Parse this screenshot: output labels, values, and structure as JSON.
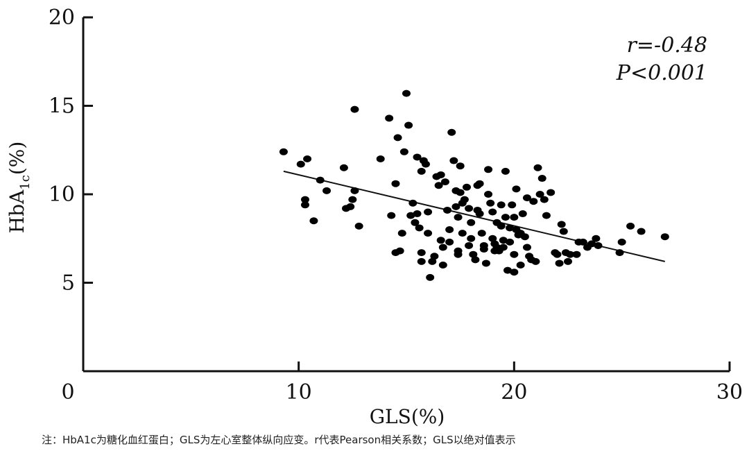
{
  "chart_data": {
    "type": "scatter",
    "xlabel": "GLS(%)",
    "ylabel_main": "HbA",
    "ylabel_sub": "1c",
    "ylabel_unit": "(%)",
    "x_ticks": [
      0,
      10,
      20,
      30
    ],
    "y_ticks": [
      5,
      10,
      15,
      20
    ],
    "xlim": [
      0,
      30
    ],
    "ylim": [
      0,
      20
    ],
    "stats": {
      "r": "r=-0.48",
      "p": "P<0.001"
    },
    "regression": {
      "x": [
        9.3,
        27.0
      ],
      "y": [
        11.3,
        6.2
      ]
    },
    "grid": false,
    "points": [
      [
        9.3,
        12.4
      ],
      [
        10.1,
        11.7
      ],
      [
        10.4,
        12.0
      ],
      [
        10.3,
        9.7
      ],
      [
        10.3,
        9.4
      ],
      [
        10.7,
        8.5
      ],
      [
        11.0,
        10.8
      ],
      [
        11.3,
        10.2
      ],
      [
        12.1,
        11.5
      ],
      [
        12.2,
        9.2
      ],
      [
        12.4,
        9.3
      ],
      [
        12.5,
        9.7
      ],
      [
        12.6,
        14.8
      ],
      [
        12.6,
        10.2
      ],
      [
        12.8,
        8.2
      ],
      [
        13.8,
        12.0
      ],
      [
        14.2,
        14.3
      ],
      [
        14.3,
        8.8
      ],
      [
        14.5,
        10.6
      ],
      [
        14.5,
        6.7
      ],
      [
        14.6,
        13.2
      ],
      [
        14.7,
        6.8
      ],
      [
        14.8,
        7.8
      ],
      [
        14.9,
        12.4
      ],
      [
        15.0,
        15.7
      ],
      [
        15.1,
        13.9
      ],
      [
        15.2,
        8.8
      ],
      [
        15.3,
        9.5
      ],
      [
        15.4,
        8.4
      ],
      [
        15.5,
        12.1
      ],
      [
        15.5,
        8.9
      ],
      [
        15.6,
        8.1
      ],
      [
        15.7,
        11.3
      ],
      [
        15.7,
        6.7
      ],
      [
        15.7,
        6.2
      ],
      [
        15.8,
        11.9
      ],
      [
        15.9,
        11.7
      ],
      [
        16.0,
        9.0
      ],
      [
        16.0,
        7.8
      ],
      [
        16.1,
        5.3
      ],
      [
        16.2,
        6.2
      ],
      [
        16.3,
        6.5
      ],
      [
        16.4,
        11.0
      ],
      [
        16.5,
        10.5
      ],
      [
        16.6,
        11.1
      ],
      [
        16.6,
        7.4
      ],
      [
        16.7,
        7.0
      ],
      [
        16.7,
        6.0
      ],
      [
        16.8,
        10.7
      ],
      [
        16.9,
        9.1
      ],
      [
        17.0,
        8.0
      ],
      [
        17.0,
        7.3
      ],
      [
        17.1,
        13.5
      ],
      [
        17.2,
        11.9
      ],
      [
        17.3,
        10.2
      ],
      [
        17.3,
        9.3
      ],
      [
        17.4,
        8.7
      ],
      [
        17.4,
        6.8
      ],
      [
        17.4,
        6.6
      ],
      [
        17.5,
        11.6
      ],
      [
        17.5,
        10.1
      ],
      [
        17.6,
        9.5
      ],
      [
        17.6,
        7.8
      ],
      [
        17.7,
        9.7
      ],
      [
        17.8,
        10.4
      ],
      [
        17.9,
        9.2
      ],
      [
        17.9,
        7.1
      ],
      [
        18.0,
        8.4
      ],
      [
        18.0,
        7.5
      ],
      [
        18.1,
        6.6
      ],
      [
        18.2,
        6.3
      ],
      [
        18.3,
        10.5
      ],
      [
        18.3,
        9.1
      ],
      [
        18.4,
        10.6
      ],
      [
        18.4,
        8.9
      ],
      [
        18.5,
        7.8
      ],
      [
        18.6,
        7.1
      ],
      [
        18.6,
        6.9
      ],
      [
        18.7,
        6.1
      ],
      [
        18.8,
        11.4
      ],
      [
        18.8,
        10.0
      ],
      [
        18.9,
        9.5
      ],
      [
        19.0,
        9.0
      ],
      [
        19.0,
        7.5
      ],
      [
        19.1,
        7.2
      ],
      [
        19.1,
        6.8
      ],
      [
        19.2,
        8.4
      ],
      [
        19.2,
        7.0
      ],
      [
        19.3,
        6.8
      ],
      [
        19.4,
        9.4
      ],
      [
        19.4,
        8.2
      ],
      [
        19.5,
        7.4
      ],
      [
        19.5,
        7.0
      ],
      [
        19.6,
        11.3
      ],
      [
        19.6,
        8.7
      ],
      [
        19.7,
        5.7
      ],
      [
        19.8,
        8.1
      ],
      [
        19.8,
        7.3
      ],
      [
        19.9,
        9.4
      ],
      [
        20.0,
        8.7
      ],
      [
        20.0,
        6.6
      ],
      [
        20.0,
        5.6
      ],
      [
        20.1,
        10.3
      ],
      [
        20.1,
        8.0
      ],
      [
        20.2,
        7.7
      ],
      [
        20.3,
        7.8
      ],
      [
        20.3,
        6.0
      ],
      [
        20.4,
        8.9
      ],
      [
        20.5,
        7.6
      ],
      [
        20.6,
        9.8
      ],
      [
        20.6,
        7.0
      ],
      [
        20.7,
        6.5
      ],
      [
        20.8,
        6.3
      ],
      [
        20.9,
        9.6
      ],
      [
        21.0,
        6.2
      ],
      [
        21.1,
        11.5
      ],
      [
        21.2,
        10.0
      ],
      [
        21.3,
        10.9
      ],
      [
        21.4,
        9.7
      ],
      [
        21.5,
        8.8
      ],
      [
        21.7,
        10.1
      ],
      [
        21.9,
        6.7
      ],
      [
        22.0,
        6.6
      ],
      [
        22.1,
        6.1
      ],
      [
        22.2,
        8.3
      ],
      [
        22.3,
        7.9
      ],
      [
        22.4,
        6.7
      ],
      [
        22.5,
        6.2
      ],
      [
        22.6,
        6.6
      ],
      [
        22.9,
        6.6
      ],
      [
        23.0,
        7.3
      ],
      [
        23.2,
        7.3
      ],
      [
        23.4,
        7.0
      ],
      [
        23.6,
        7.2
      ],
      [
        23.8,
        7.5
      ],
      [
        23.9,
        7.1
      ],
      [
        24.9,
        6.7
      ],
      [
        25.0,
        7.3
      ],
      [
        25.4,
        8.2
      ],
      [
        25.9,
        7.9
      ],
      [
        27.0,
        7.6
      ]
    ]
  },
  "note": "注：HbA1c为糖化血红蛋白；GLS为左心室整体纵向应变。r代表Pearson相关系数；GLS以绝对值表示"
}
